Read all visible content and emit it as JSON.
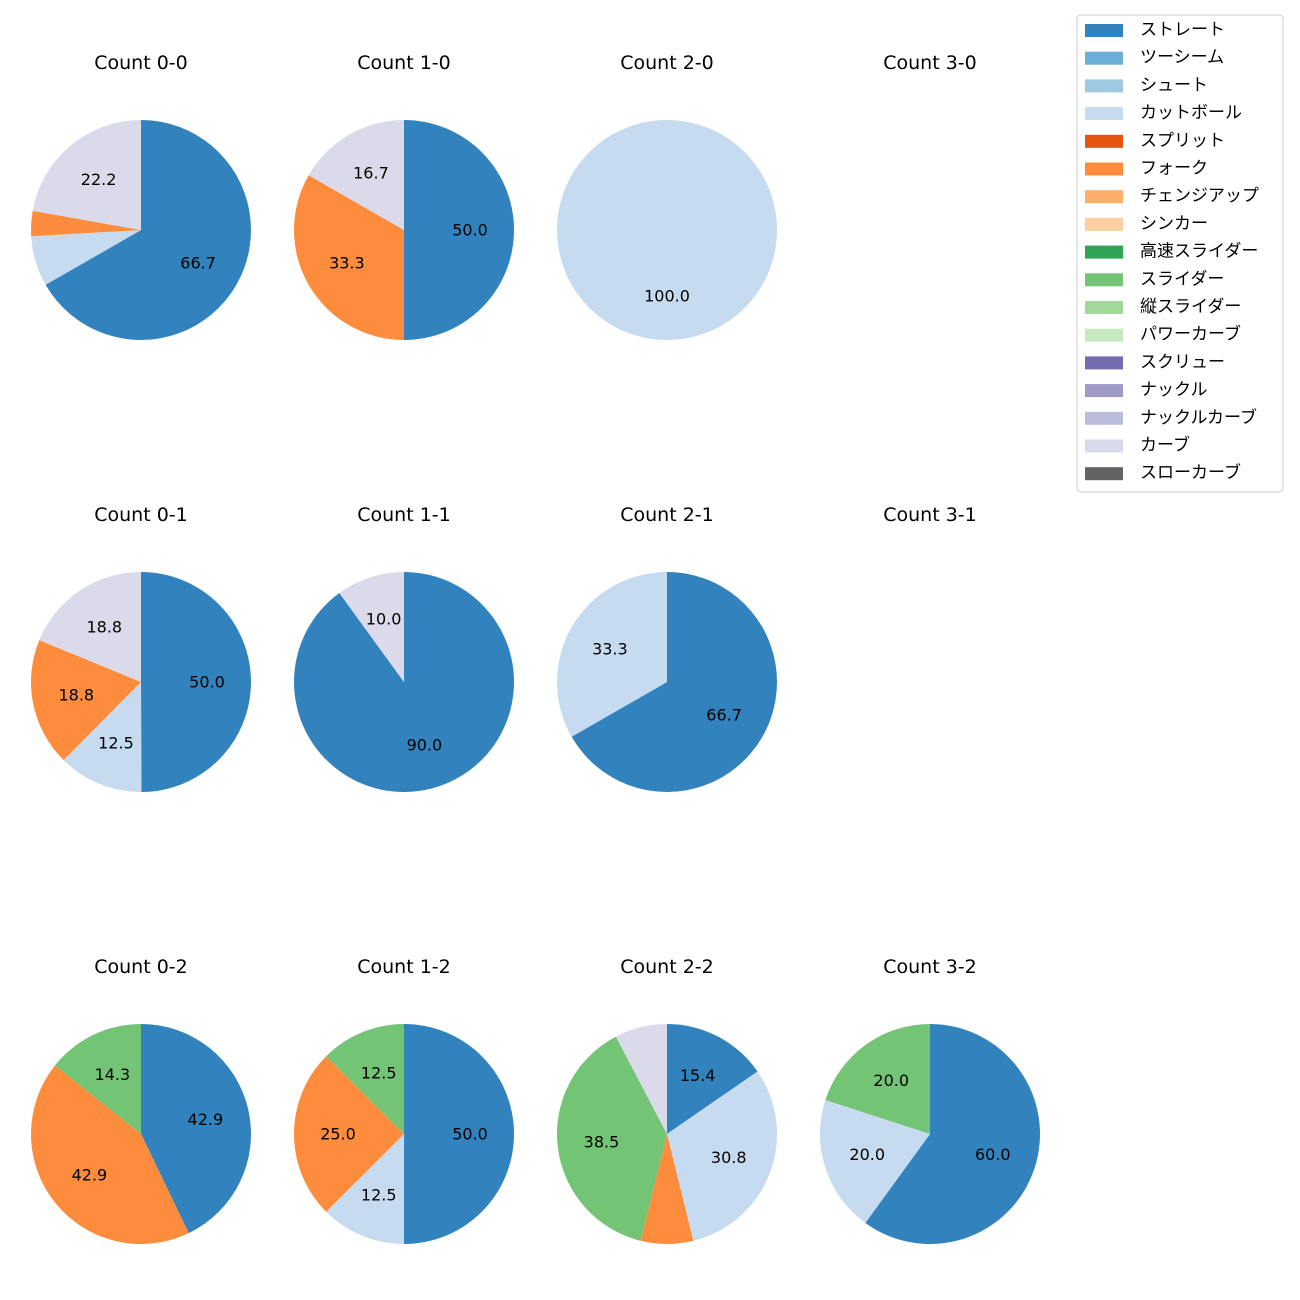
{
  "chart_data": {
    "type": "pie",
    "legend": {
      "placement": "top-right",
      "entries": [
        {
          "name": "ストレート",
          "color": "#3182bd"
        },
        {
          "name": "ツーシーム",
          "color": "#6baed6"
        },
        {
          "name": "シュート",
          "color": "#9ecae1"
        },
        {
          "name": "カットボール",
          "color": "#c6dbef"
        },
        {
          "name": "スプリット",
          "color": "#e6550d"
        },
        {
          "name": "フォーク",
          "color": "#fd8d3c"
        },
        {
          "name": "チェンジアップ",
          "color": "#fdae6b"
        },
        {
          "name": "シンカー",
          "color": "#fdd0a2"
        },
        {
          "name": "高速スライダー",
          "color": "#31a354"
        },
        {
          "name": "スライダー",
          "color": "#74c476"
        },
        {
          "name": "縦スライダー",
          "color": "#a1d99b"
        },
        {
          "name": "パワーカーブ",
          "color": "#c7e9c0"
        },
        {
          "name": "スクリュー",
          "color": "#756bb1"
        },
        {
          "name": "ナックル",
          "color": "#9e9ac8"
        },
        {
          "name": "ナックルカーブ",
          "color": "#bcbddc"
        },
        {
          "name": "カーブ",
          "color": "#dadaeb"
        },
        {
          "name": "スローカーブ",
          "color": "#636363"
        }
      ]
    },
    "pies": [
      {
        "title": "Count 0-0",
        "slices": [
          {
            "name": "ストレート",
            "value": 66.7,
            "label": "66.7"
          },
          {
            "name": "カットボール",
            "value": 7.4,
            "label": ""
          },
          {
            "name": "フォーク",
            "value": 3.7,
            "label": ""
          },
          {
            "name": "カーブ",
            "value": 22.2,
            "label": "22.2"
          }
        ]
      },
      {
        "title": "Count 1-0",
        "slices": [
          {
            "name": "ストレート",
            "value": 50.0,
            "label": "50.0"
          },
          {
            "name": "フォーク",
            "value": 33.3,
            "label": "33.3"
          },
          {
            "name": "カーブ",
            "value": 16.7,
            "label": "16.7"
          }
        ]
      },
      {
        "title": "Count 2-0",
        "slices": [
          {
            "name": "カットボール",
            "value": 100.0,
            "label": "100.0"
          }
        ]
      },
      {
        "title": "Count 3-0",
        "slices": []
      },
      {
        "title": "Count 0-1",
        "slices": [
          {
            "name": "ストレート",
            "value": 50.0,
            "label": "50.0"
          },
          {
            "name": "カットボール",
            "value": 12.5,
            "label": "12.5"
          },
          {
            "name": "フォーク",
            "value": 18.8,
            "label": "18.8"
          },
          {
            "name": "カーブ",
            "value": 18.8,
            "label": "18.8"
          }
        ]
      },
      {
        "title": "Count 1-1",
        "slices": [
          {
            "name": "ストレート",
            "value": 90.0,
            "label": "90.0"
          },
          {
            "name": "カーブ",
            "value": 10.0,
            "label": "10.0"
          }
        ]
      },
      {
        "title": "Count 2-1",
        "slices": [
          {
            "name": "ストレート",
            "value": 66.7,
            "label": "66.7"
          },
          {
            "name": "カットボール",
            "value": 33.3,
            "label": "33.3"
          }
        ]
      },
      {
        "title": "Count 3-1",
        "slices": []
      },
      {
        "title": "Count 0-2",
        "slices": [
          {
            "name": "ストレート",
            "value": 42.9,
            "label": "42.9"
          },
          {
            "name": "フォーク",
            "value": 42.9,
            "label": "42.9"
          },
          {
            "name": "スライダー",
            "value": 14.3,
            "label": "14.3"
          }
        ]
      },
      {
        "title": "Count 1-2",
        "slices": [
          {
            "name": "ストレート",
            "value": 50.0,
            "label": "50.0"
          },
          {
            "name": "カットボール",
            "value": 12.5,
            "label": "12.5"
          },
          {
            "name": "フォーク",
            "value": 25.0,
            "label": "25.0"
          },
          {
            "name": "スライダー",
            "value": 12.5,
            "label": "12.5"
          }
        ]
      },
      {
        "title": "Count 2-2",
        "slices": [
          {
            "name": "ストレート",
            "value": 15.4,
            "label": "15.4"
          },
          {
            "name": "カットボール",
            "value": 30.8,
            "label": "30.8"
          },
          {
            "name": "フォーク",
            "value": 7.7,
            "label": ""
          },
          {
            "name": "スライダー",
            "value": 38.5,
            "label": "38.5"
          },
          {
            "name": "カーブ",
            "value": 7.7,
            "label": ""
          }
        ]
      },
      {
        "title": "Count 3-2",
        "slices": [
          {
            "name": "ストレート",
            "value": 60.0,
            "label": "60.0"
          },
          {
            "name": "カットボール",
            "value": 20.0,
            "label": "20.0"
          },
          {
            "name": "スライダー",
            "value": 20.0,
            "label": "20.0"
          }
        ]
      }
    ]
  }
}
